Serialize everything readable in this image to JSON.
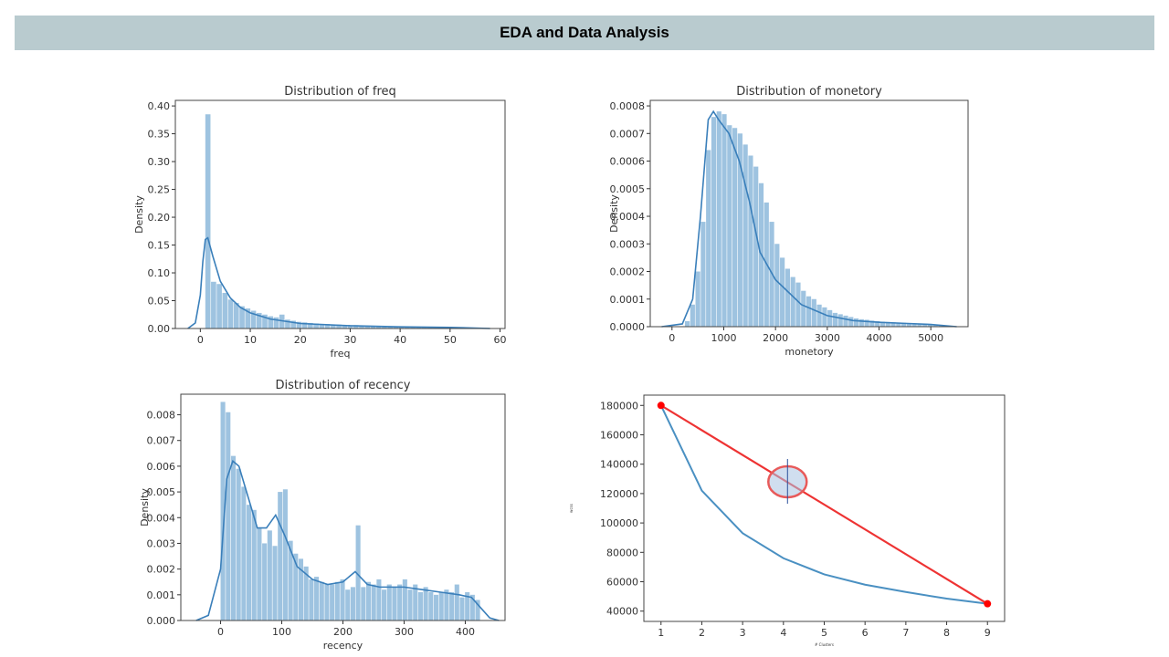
{
  "slide": {
    "title": "EDA and Data Analysis"
  },
  "colors": {
    "hist": "#9ec3e0",
    "kde": "#3a7fba",
    "elbow": "#4a90c2",
    "line": "#ee3333",
    "banner": "#b9cbcf"
  },
  "chart_data": [
    {
      "type": "bar",
      "title": "Distribution of freq",
      "xlabel": "freq",
      "ylabel": "Density",
      "xlim": [
        -5,
        61
      ],
      "ylim": [
        0,
        0.41
      ],
      "xticks": [
        0,
        10,
        20,
        30,
        40,
        50,
        60
      ],
      "yticks": [
        "0.00",
        "0.05",
        "0.10",
        "0.15",
        "0.20",
        "0.25",
        "0.30",
        "0.35",
        "0.40"
      ],
      "bins": {
        "start": 1,
        "width": 1.14,
        "values": [
          0.385,
          0.084,
          0.08,
          0.064,
          0.052,
          0.046,
          0.04,
          0.036,
          0.032,
          0.028,
          0.025,
          0.022,
          0.02,
          0.025,
          0.016,
          0.014,
          0.012,
          0.011,
          0.01,
          0.009,
          0.008,
          0.008,
          0.007,
          0.007,
          0.006,
          0.006,
          0.006,
          0.005,
          0.005,
          0.004,
          0.004,
          0.004,
          0.003,
          0.003,
          0.003,
          0.003,
          0.003,
          0.002,
          0.002,
          0.002,
          0.002,
          0.002,
          0.002,
          0.002,
          0.002,
          0.001,
          0.001,
          0.001,
          0.001,
          0.001
        ]
      },
      "kde": {
        "x": [
          -2.5,
          -1,
          0,
          0.5,
          1,
          1.5,
          2.5,
          4,
          6,
          8,
          10,
          14,
          20,
          30,
          40,
          50,
          58
        ],
        "y": [
          0,
          0.01,
          0.06,
          0.12,
          0.16,
          0.163,
          0.13,
          0.085,
          0.055,
          0.038,
          0.028,
          0.017,
          0.009,
          0.005,
          0.003,
          0.002,
          0
        ]
      }
    },
    {
      "type": "bar",
      "title": "Distribution of monetory",
      "xlabel": "monetory",
      "ylabel": "Density",
      "xlim": [
        -420,
        5720
      ],
      "ylim": [
        0,
        0.00082
      ],
      "xticks": [
        0,
        1000,
        2000,
        3000,
        4000,
        5000
      ],
      "yticks": [
        "0.0000",
        "0.0001",
        "0.0002",
        "0.0003",
        "0.0004",
        "0.0005",
        "0.0006",
        "0.0007",
        "0.0008"
      ],
      "bins": {
        "start": 250,
        "width": 102,
        "values": [
          2e-05,
          8e-05,
          0.0002,
          0.00038,
          0.00064,
          0.00076,
          0.00078,
          0.00077,
          0.00073,
          0.00072,
          0.0007,
          0.00066,
          0.00062,
          0.00058,
          0.00052,
          0.00045,
          0.00038,
          0.0003,
          0.00025,
          0.00021,
          0.00018,
          0.00016,
          0.00013,
          0.00011,
          0.0001,
          8e-05,
          7e-05,
          6e-05,
          5e-05,
          4.5e-05,
          4e-05,
          3.5e-05,
          3e-05,
          2.7e-05,
          2.5e-05,
          2.2e-05,
          2e-05,
          1.8e-05,
          1.7e-05,
          1.6e-05,
          1.5e-05,
          1.4e-05,
          1.3e-05,
          1.2e-05,
          1.1e-05,
          1e-05,
          1e-05,
          8e-06,
          6e-06,
          4e-06
        ]
      },
      "kde": {
        "x": [
          -200,
          200,
          400,
          550,
          700,
          800,
          900,
          1100,
          1300,
          1500,
          1700,
          2000,
          2500,
          3000,
          3500,
          4000,
          4500,
          5000,
          5500
        ],
        "y": [
          0,
          1e-05,
          0.0001,
          0.0004,
          0.00075,
          0.00078,
          0.00075,
          0.0007,
          0.0006,
          0.00045,
          0.00027,
          0.00017,
          8e-05,
          4e-05,
          2.2e-05,
          1.6e-05,
          1.2e-05,
          8e-06,
          0
        ]
      }
    },
    {
      "type": "bar",
      "title": "Distribution of recency",
      "xlabel": "recency",
      "ylabel": "Density",
      "xlim": [
        -65,
        465
      ],
      "ylim": [
        0,
        0.0088
      ],
      "xticks": [
        0,
        100,
        200,
        300,
        400
      ],
      "yticks": [
        "0.000",
        "0.001",
        "0.002",
        "0.003",
        "0.004",
        "0.005",
        "0.006",
        "0.007",
        "0.008"
      ],
      "bins": {
        "start": 0,
        "width": 8.5,
        "values": [
          0.0085,
          0.0081,
          0.0064,
          0.0059,
          0.0052,
          0.0045,
          0.0043,
          0.0036,
          0.003,
          0.0035,
          0.0029,
          0.005,
          0.0051,
          0.0031,
          0.0026,
          0.0024,
          0.0021,
          0.0016,
          0.0017,
          0.0015,
          0.0014,
          0.0014,
          0.0015,
          0.0016,
          0.0012,
          0.0013,
          0.0037,
          0.0013,
          0.0015,
          0.0014,
          0.0016,
          0.0012,
          0.0014,
          0.0013,
          0.0014,
          0.0016,
          0.0012,
          0.0014,
          0.0011,
          0.0013,
          0.0011,
          0.001,
          0.0011,
          0.0012,
          0.0011,
          0.0014,
          0.0009,
          0.0011,
          0.001,
          0.0008
        ]
      },
      "kde": {
        "x": [
          -40,
          -20,
          0,
          10,
          20,
          30,
          45,
          60,
          75,
          90,
          105,
          125,
          150,
          175,
          200,
          220,
          240,
          260,
          280,
          300,
          330,
          360,
          390,
          410,
          425,
          440,
          455
        ],
        "y": [
          0,
          0.0002,
          0.002,
          0.0055,
          0.0062,
          0.006,
          0.0048,
          0.0036,
          0.0036,
          0.0041,
          0.0033,
          0.0021,
          0.0016,
          0.0014,
          0.0015,
          0.0019,
          0.0014,
          0.0013,
          0.0013,
          0.0013,
          0.0012,
          0.0011,
          0.001,
          0.0009,
          0.0005,
          0.0001,
          0
        ]
      }
    },
    {
      "type": "line",
      "title": "",
      "xlabel": "# Clusters",
      "ylabel": "wcss",
      "xlim": [
        0.58,
        9.42
      ],
      "ylim": [
        33000,
        187000
      ],
      "xticks": [
        1,
        2,
        3,
        4,
        5,
        6,
        7,
        8,
        9
      ],
      "yticks": [
        40000,
        60000,
        80000,
        100000,
        120000,
        140000,
        160000,
        180000
      ],
      "x": [
        1,
        2,
        3,
        4,
        5,
        6,
        7,
        8,
        9
      ],
      "wcss": [
        180000,
        122000,
        93000,
        76000,
        65000,
        58000,
        53000,
        48500,
        45000
      ],
      "reference_line": {
        "from": [
          1,
          180000
        ],
        "to": [
          9,
          45000
        ]
      },
      "highlight": {
        "x": 4.1,
        "y": 128000
      }
    }
  ]
}
